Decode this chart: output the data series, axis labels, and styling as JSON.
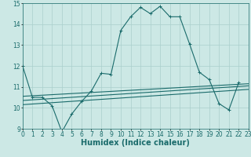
{
  "xlabel": "Humidex (Indice chaleur)",
  "x": [
    0,
    1,
    2,
    3,
    4,
    5,
    6,
    7,
    8,
    9,
    10,
    11,
    12,
    13,
    14,
    15,
    16,
    17,
    18,
    19,
    20,
    21,
    22,
    23
  ],
  "line1": [
    12.0,
    10.5,
    10.5,
    10.1,
    8.85,
    9.7,
    10.3,
    10.8,
    11.65,
    11.6,
    13.7,
    14.35,
    14.8,
    14.5,
    14.85,
    14.35,
    14.35,
    13.05,
    11.7,
    11.35,
    10.2,
    9.9,
    11.2,
    null
  ],
  "line3_x": [
    0,
    23
  ],
  "line3_y": [
    10.55,
    11.15
  ],
  "line4_x": [
    0,
    23
  ],
  "line4_y": [
    10.35,
    11.05
  ],
  "line5_x": [
    0,
    23
  ],
  "line5_y": [
    10.15,
    10.88
  ],
  "ylim": [
    9,
    15
  ],
  "xlim": [
    0,
    23
  ],
  "yticks": [
    9,
    10,
    11,
    12,
    13,
    14,
    15
  ],
  "xticks": [
    0,
    1,
    2,
    3,
    4,
    5,
    6,
    7,
    8,
    9,
    10,
    11,
    12,
    13,
    14,
    15,
    16,
    17,
    18,
    19,
    20,
    21,
    22,
    23
  ],
  "line_color": "#1a6b6b",
  "bg_color": "#cce8e5",
  "grid_color": "#aacfcc",
  "tick_fontsize": 5.5,
  "label_fontsize": 7.0
}
